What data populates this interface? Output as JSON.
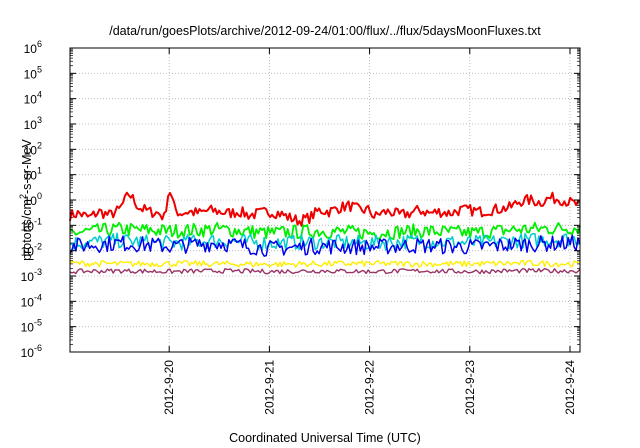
{
  "chart_data": {
    "type": "line",
    "title": "/data/run/goesPlots/archive/2012-09-24/01:00/flux/../flux/5daysMoonFluxes.txt",
    "xlabel": "Coordinated Universal Time (UTC)",
    "ylabel": "protons/cm²-s-sr-MeV",
    "ylabel_parts": {
      "pre": "protons/cm",
      "sup": "2",
      "post": "-s-sr-MeV"
    },
    "yscale": "log",
    "ylim_exponents": [
      -6,
      6
    ],
    "y_ticks": [
      {
        "base": "10",
        "exp": "-6"
      },
      {
        "base": "10",
        "exp": "-5"
      },
      {
        "base": "10",
        "exp": "-4"
      },
      {
        "base": "10",
        "exp": "-3"
      },
      {
        "base": "10",
        "exp": "-2"
      },
      {
        "base": "10",
        "exp": "-1"
      },
      {
        "base": "10",
        "exp": "0"
      },
      {
        "base": "10",
        "exp": "1"
      },
      {
        "base": "10",
        "exp": "2"
      },
      {
        "base": "10",
        "exp": "3"
      },
      {
        "base": "10",
        "exp": "4"
      },
      {
        "base": "10",
        "exp": "5"
      },
      {
        "base": "10",
        "exp": "6"
      }
    ],
    "x_ticks": [
      "2012-9-20",
      "2012-9-21",
      "2012-9-22",
      "2012-9-23",
      "2012-9-24"
    ],
    "x_tick_days": [
      20,
      21,
      22,
      23,
      24
    ],
    "xlim_days": [
      19.01,
      24.1
    ],
    "grid": true,
    "series_level_points": [
      {
        "color": "#ee0000",
        "x_days": [
          19.01,
          19.1,
          19.2,
          19.3,
          19.4,
          19.5,
          19.6,
          19.7,
          19.8,
          19.9,
          19.95,
          20.0,
          20.05,
          20.1,
          20.2,
          20.3,
          20.4,
          20.5,
          20.6,
          20.7,
          20.8,
          20.9,
          21.0,
          21.1,
          21.2,
          21.3,
          21.4,
          21.5,
          21.6,
          21.7,
          21.8,
          21.9,
          22.0,
          22.05,
          22.1,
          22.2,
          22.3,
          22.4,
          22.5,
          22.6,
          22.7,
          22.8,
          22.9,
          23.0,
          23.1,
          23.2,
          23.3,
          23.4,
          23.5,
          23.6,
          23.7,
          23.8,
          23.9,
          24.0,
          24.1
        ],
        "y_values": [
          0.25,
          0.3,
          0.2,
          0.35,
          0.25,
          0.4,
          1.8,
          0.5,
          0.35,
          0.3,
          0.2,
          3.0,
          0.5,
          0.3,
          0.35,
          0.3,
          0.4,
          0.35,
          0.3,
          0.35,
          0.25,
          0.3,
          0.35,
          0.3,
          0.2,
          0.15,
          0.2,
          0.4,
          0.35,
          0.5,
          0.6,
          0.4,
          0.4,
          0.2,
          0.3,
          0.35,
          0.25,
          0.3,
          0.4,
          0.3,
          0.35,
          0.3,
          0.4,
          0.4,
          0.35,
          0.4,
          0.45,
          0.5,
          0.9,
          1.0,
          0.8,
          1.2,
          1.1,
          0.8,
          0.6
        ]
      },
      {
        "color": "#00ee00",
        "x_days": [
          19.01,
          19.5,
          20.0,
          20.5,
          21.0,
          21.5,
          22.0,
          22.5,
          23.0,
          23.5,
          24.1
        ],
        "y_values": [
          0.05,
          0.07,
          0.06,
          0.07,
          0.05,
          0.06,
          0.05,
          0.06,
          0.05,
          0.07,
          0.08
        ]
      },
      {
        "color": "#00cccc",
        "x_days": [
          19.01,
          19.5,
          20.0,
          20.5,
          21.0,
          21.5,
          22.0,
          22.5,
          23.0,
          23.5,
          24.1
        ],
        "y_values": [
          0.02,
          0.025,
          0.02,
          0.025,
          0.02,
          0.022,
          0.02,
          0.024,
          0.02,
          0.025,
          0.03
        ]
      },
      {
        "color": "#0000ee",
        "x_days": [
          19.01,
          19.5,
          20.0,
          20.5,
          21.0,
          21.5,
          22.0,
          22.5,
          23.0,
          23.5,
          24.1
        ],
        "y_values": [
          0.015,
          0.02,
          0.015,
          0.02,
          0.012,
          0.015,
          0.014,
          0.016,
          0.014,
          0.018,
          0.02
        ]
      },
      {
        "color": "#ffee00",
        "x_days": [
          19.01,
          19.5,
          20.0,
          20.5,
          21.0,
          21.5,
          22.0,
          22.5,
          23.0,
          23.5,
          24.1
        ],
        "y_values": [
          0.0032,
          0.003,
          0.0031,
          0.003,
          0.0029,
          0.003,
          0.0031,
          0.003,
          0.003,
          0.0032,
          0.003
        ]
      },
      {
        "color": "#993366",
        "x_days": [
          19.01,
          19.5,
          20.0,
          20.5,
          21.0,
          21.5,
          22.0,
          22.5,
          23.0,
          23.5,
          24.1
        ],
        "y_values": [
          0.0015,
          0.0016,
          0.0015,
          0.0016,
          0.0015,
          0.0016,
          0.0015,
          0.0016,
          0.0015,
          0.0016,
          0.0016
        ]
      }
    ]
  }
}
